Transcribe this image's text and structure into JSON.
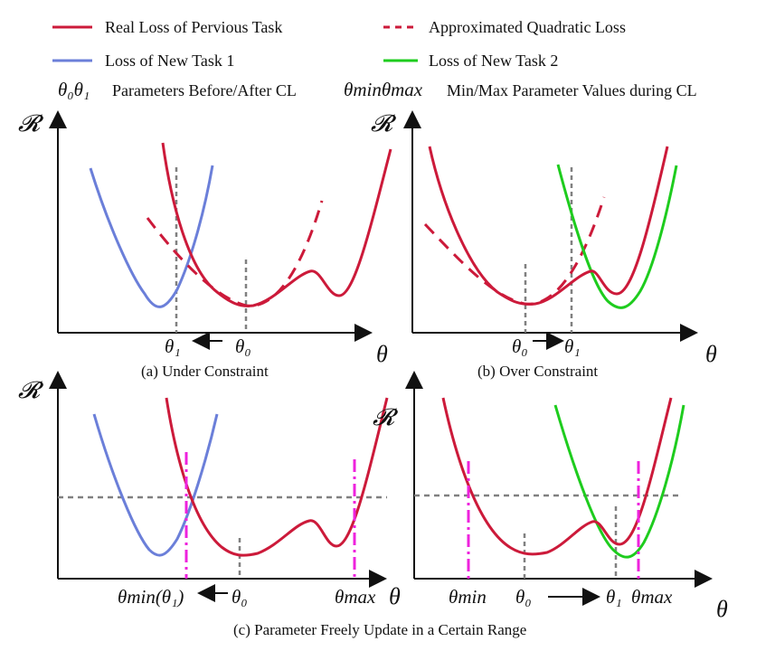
{
  "legend": {
    "real_loss": "Real Loss of Pervious Task",
    "approx_loss": "Approximated Quadratic Loss",
    "new_task_1": "Loss of New Task 1",
    "new_task_2": "Loss of New Task 2",
    "params_symbol": "θ₀θ₁",
    "params_text": "Parameters Before/After CL",
    "minmax_symbol": "θminθmax",
    "minmax_text": "Min/Max Parameter Values during CL"
  },
  "axes": {
    "y": "𝓡",
    "x": "θ"
  },
  "panels": {
    "a": {
      "caption": "(a) Under Constraint",
      "tick_theta1": "θ₁",
      "tick_theta0": "θ₀"
    },
    "b": {
      "caption": "(b) Over Constraint",
      "tick_theta0": "θ₀",
      "tick_theta1": "θ₁"
    },
    "c_left": {
      "tick_min": "θmin(θ₁)",
      "tick_theta0": "θ₀",
      "tick_max": "θmax"
    },
    "c_right": {
      "tick_min": "θmin",
      "tick_theta0": "θ₀",
      "tick_theta1": "θ₁",
      "tick_max": "θmax"
    },
    "c": {
      "caption": "(c) Parameter Freely Update in a Certain Range"
    }
  },
  "colors": {
    "real_loss": "#cc1a3a",
    "approx_loss": "#cc1a3a",
    "new_task_1": "#6b7fd9",
    "new_task_2": "#1ecc1e",
    "guide": "#808080",
    "range": "#ee22dd"
  }
}
